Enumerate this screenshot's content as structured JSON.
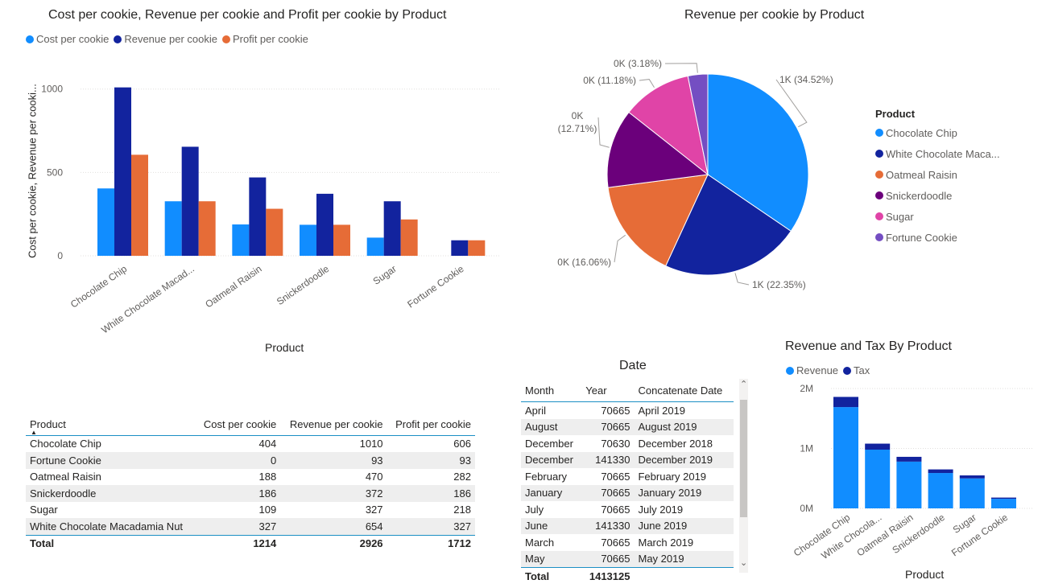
{
  "visuals": {
    "bar1": {
      "title": "Cost per cookie, Revenue per cookie and Profit per cookie by Product",
      "ylabel": "Cost per cookie, Revenue per cooki...",
      "xlabel": "Product"
    },
    "pie": {
      "title": "Revenue per cookie by Product",
      "legend_title": "Product",
      "legend_items": [
        "Chocolate Chip",
        "White Chocolate Maca...",
        "Oatmeal Raisin",
        "Snickerdoodle",
        "Sugar",
        "Fortune Cookie"
      ]
    },
    "table1": {
      "columns": [
        "Product",
        "Cost per cookie",
        "Revenue per cookie",
        "Profit per cookie"
      ],
      "rows": [
        [
          "Chocolate Chip",
          "404",
          "1010",
          "606"
        ],
        [
          "Fortune Cookie",
          "0",
          "93",
          "93"
        ],
        [
          "Oatmeal Raisin",
          "188",
          "470",
          "282"
        ],
        [
          "Snickerdoodle",
          "186",
          "372",
          "186"
        ],
        [
          "Sugar",
          "109",
          "327",
          "218"
        ],
        [
          "White Chocolate Macadamia Nut",
          "327",
          "654",
          "327"
        ]
      ],
      "total": [
        "Total",
        "1214",
        "2926",
        "1712"
      ]
    },
    "table2": {
      "title": "Date",
      "columns": [
        "Month",
        "Year",
        "Concatenate Date"
      ],
      "rows": [
        [
          "April",
          "70665",
          "April 2019"
        ],
        [
          "August",
          "70665",
          "August 2019"
        ],
        [
          "December",
          "70630",
          "December 2018"
        ],
        [
          "December",
          "141330",
          "December 2019"
        ],
        [
          "February",
          "70665",
          "February 2019"
        ],
        [
          "January",
          "70665",
          "January 2019"
        ],
        [
          "July",
          "70665",
          "July 2019"
        ],
        [
          "June",
          "141330",
          "June 2019"
        ],
        [
          "March",
          "70665",
          "March 2019"
        ],
        [
          "May",
          "70665",
          "May 2019"
        ]
      ],
      "total": [
        "Total",
        "1413125",
        ""
      ],
      "scroll_up": "⌃",
      "scroll_down": "⌄"
    },
    "bar2": {
      "title": "Revenue and Tax By Product",
      "xlabel": "Product"
    }
  },
  "chart_data": [
    {
      "type": "bar",
      "title": "Cost per cookie, Revenue per cookie and Profit per cookie by Product",
      "categories": [
        "Chocolate Chip",
        "White Chocolate Macad...",
        "Oatmeal Raisin",
        "Snickerdoodle",
        "Sugar",
        "Fortune Cookie"
      ],
      "series": [
        {
          "name": "Cost per cookie",
          "color": "#118dff",
          "values": [
            404,
            327,
            188,
            186,
            109,
            0
          ]
        },
        {
          "name": "Revenue per cookie",
          "color": "#12239e",
          "values": [
            1010,
            654,
            470,
            372,
            327,
            93
          ]
        },
        {
          "name": "Profit per cookie",
          "color": "#e66c37",
          "values": [
            606,
            327,
            282,
            186,
            218,
            93
          ]
        }
      ],
      "yticks": [
        "0",
        "500",
        "1000"
      ],
      "ytick_values": [
        0,
        500,
        1000
      ],
      "ylim": [
        0,
        1100
      ],
      "xlabel": "Product",
      "ylabel": "Cost per cookie, Revenue per cooki...",
      "legend": "top-left",
      "grid": true
    },
    {
      "type": "pie",
      "title": "Revenue per cookie by Product",
      "slices": [
        {
          "name": "Chocolate Chip",
          "value": 34.52,
          "color": "#118dff",
          "label": "1K (34.52%)"
        },
        {
          "name": "White Chocolate Macadamia Nut",
          "value": 22.35,
          "color": "#12239e",
          "label": "1K (22.35%)"
        },
        {
          "name": "Oatmeal Raisin",
          "value": 16.06,
          "color": "#e66c37",
          "label": "0K (16.06%)"
        },
        {
          "name": "Snickerdoodle",
          "value": 12.71,
          "color": "#6b007b",
          "label": "0K (12.71%)"
        },
        {
          "name": "Sugar",
          "value": 11.18,
          "color": "#e044a7",
          "label": "0K (11.18%)"
        },
        {
          "name": "Fortune Cookie",
          "value": 3.18,
          "color": "#744ec2",
          "label": "0K (3.18%)"
        }
      ],
      "legend": "right"
    },
    {
      "type": "bar",
      "stacked": true,
      "title": "Revenue and Tax By Product",
      "categories": [
        "Chocolate Chip",
        "White Chocola...",
        "Oatmeal Raisin",
        "Snickerdoodle",
        "Sugar",
        "Fortune Cookie"
      ],
      "series": [
        {
          "name": "Revenue",
          "color": "#118dff",
          "values": [
            1690000,
            980000,
            780000,
            590000,
            500000,
            160000
          ]
        },
        {
          "name": "Tax",
          "color": "#12239e",
          "values": [
            170000,
            100000,
            80000,
            60000,
            50000,
            20000
          ]
        }
      ],
      "yticks": [
        "0M",
        "1M",
        "2M"
      ],
      "ytick_values": [
        0,
        1000000,
        2000000
      ],
      "ylim": [
        0,
        2000000
      ],
      "xlabel": "Product",
      "legend": "top-left",
      "grid": true
    }
  ]
}
